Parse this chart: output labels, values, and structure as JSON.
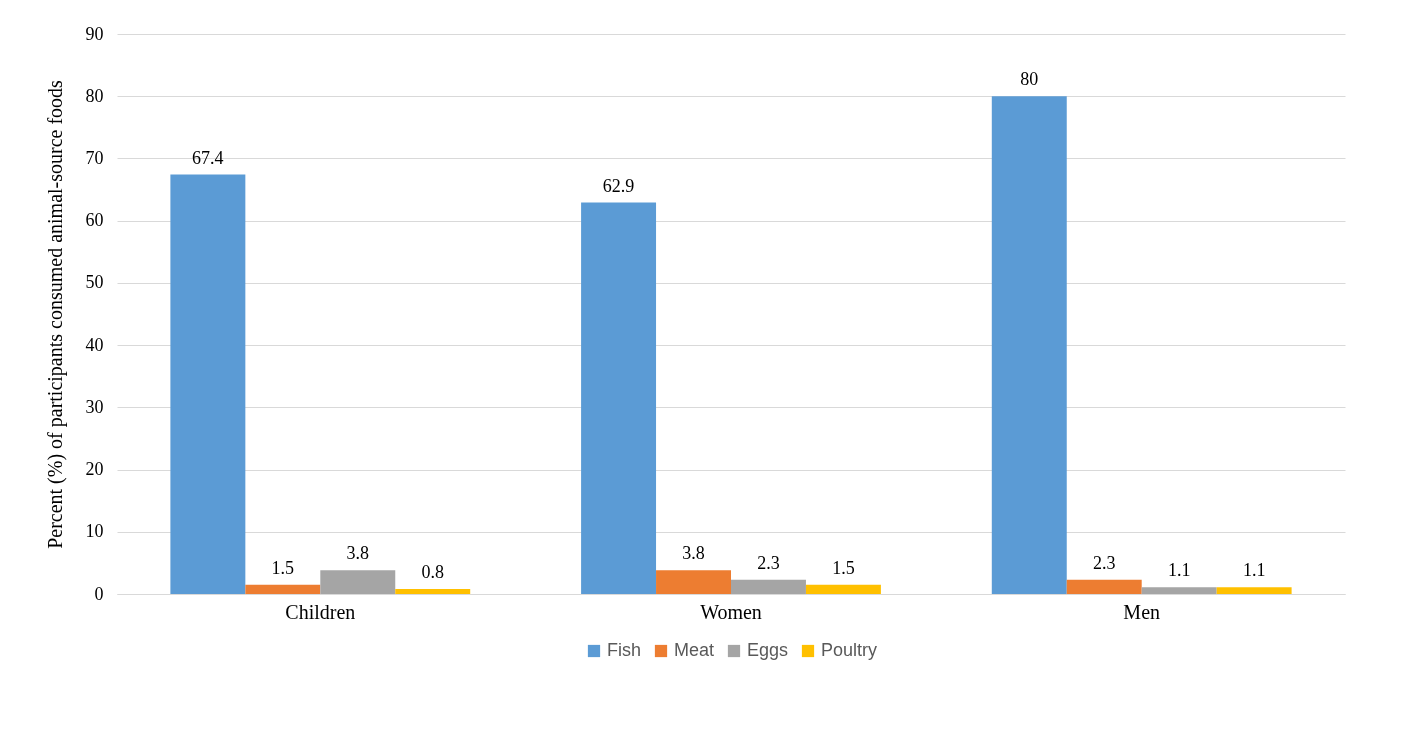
{
  "chart_data": {
    "type": "bar",
    "ylabel": "Percent (%) of participants consumed animal-source foods",
    "categories": [
      "Children",
      "Women",
      "Men"
    ],
    "series": [
      {
        "name": "Fish",
        "color": "#5b9bd5",
        "values": [
          67.4,
          62.9,
          80
        ]
      },
      {
        "name": "Meat",
        "color": "#ed7d31",
        "values": [
          1.5,
          3.8,
          2.3
        ]
      },
      {
        "name": "Eggs",
        "color": "#a5a5a5",
        "values": [
          3.8,
          2.3,
          1.1
        ]
      },
      {
        "name": "Poultry",
        "color": "#ffc000",
        "values": [
          0.8,
          1.5,
          1.1
        ]
      }
    ],
    "ylim": [
      0,
      90
    ],
    "yticks": [
      0,
      10,
      20,
      30,
      40,
      50,
      60,
      70,
      80,
      90
    ],
    "grid": "y",
    "legend": "bottom",
    "data_labels": true
  }
}
